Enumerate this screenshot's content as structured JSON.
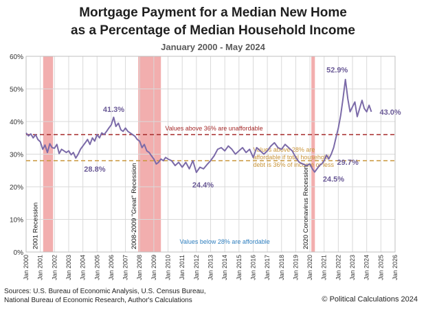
{
  "title_line1": "Mortgage Payment for a Median New Home",
  "title_line2": "as a Percentage of Median Household Income",
  "subtitle": "January 2000 - May 2024",
  "sources_line1": "Sources: U.S. Bureau of Economic Analysis, U.S. Census Bureau,",
  "sources_line2": "National Bureau of Economic Research, Author's Calculations",
  "credit": "© Political Calculations 2024",
  "colors": {
    "line": "#7b6aa8",
    "unaffordable": "#a52a2a",
    "threshold28": "#c9953a",
    "recession": "#f0a0a0",
    "below_note": "#2f7fbf",
    "grid": "#d9d9d9"
  },
  "chart_data": {
    "type": "line",
    "title": "Mortgage Payment for a Median New Home as a Percentage of Median Household Income",
    "xlim": [
      2000,
      2026
    ],
    "ylim": [
      0,
      60
    ],
    "grid": true,
    "y_ticks": [
      "0%",
      "10%",
      "20%",
      "30%",
      "40%",
      "50%",
      "60%"
    ],
    "x_ticks": [
      "Jan 2000",
      "Jan 2001",
      "Jan 2002",
      "Jan 2003",
      "Jan 2004",
      "Jan 2005",
      "Jan 2006",
      "Jan 2007",
      "Jan 2008",
      "Jan 2009",
      "Jan 2010",
      "Jan 2011",
      "Jan 2012",
      "Jan 2013",
      "Jan 2014",
      "Jan 2015",
      "Jan 2016",
      "Jan 2017",
      "Jan 2018",
      "Jan 2019",
      "Jan 2020",
      "Jan 2021",
      "Jan 2022",
      "Jan 2023",
      "Jan 2024",
      "Jan 2025",
      "Jan 2026"
    ],
    "series": [
      {
        "x": [
          2000.0,
          2000.17,
          2000.33,
          2000.5,
          2000.67,
          2000.83,
          2001.0,
          2001.17,
          2001.33,
          2001.5,
          2001.67,
          2001.83,
          2002.0,
          2002.17,
          2002.33,
          2002.5,
          2002.67,
          2002.83,
          2003.0,
          2003.17,
          2003.33,
          2003.5,
          2003.67,
          2003.83,
          2004.0,
          2004.17,
          2004.33,
          2004.5,
          2004.67,
          2004.83,
          2005.0,
          2005.17,
          2005.33,
          2005.5,
          2005.67,
          2005.83,
          2006.0,
          2006.17,
          2006.33,
          2006.5,
          2006.67,
          2006.83,
          2007.0,
          2007.17,
          2007.33,
          2007.5,
          2007.67,
          2007.83,
          2008.0,
          2008.17,
          2008.33,
          2008.5,
          2008.67,
          2008.83,
          2009.0,
          2009.17,
          2009.33,
          2009.5,
          2009.67,
          2009.83,
          2010.0,
          2010.25,
          2010.5,
          2010.75,
          2011.0,
          2011.25,
          2011.5,
          2011.75,
          2012.0,
          2012.25,
          2012.5,
          2012.75,
          2013.0,
          2013.25,
          2013.5,
          2013.75,
          2014.0,
          2014.25,
          2014.5,
          2014.75,
          2015.0,
          2015.25,
          2015.5,
          2015.75,
          2016.0,
          2016.25,
          2016.5,
          2016.75,
          2017.0,
          2017.25,
          2017.5,
          2017.75,
          2018.0,
          2018.25,
          2018.5,
          2018.75,
          2019.0,
          2019.25,
          2019.5,
          2019.75,
          2020.0,
          2020.17,
          2020.33,
          2020.5,
          2020.67,
          2020.83,
          2021.0,
          2021.17,
          2021.33,
          2021.5,
          2021.67,
          2021.83,
          2022.0,
          2022.17,
          2022.33,
          2022.5,
          2022.67,
          2022.83,
          2023.0,
          2023.17,
          2023.33,
          2023.5,
          2023.67,
          2023.83,
          2024.0,
          2024.17,
          2024.33
        ],
        "y": [
          36.5,
          35.6,
          36.2,
          35.0,
          36.0,
          34.5,
          33.8,
          31.5,
          32.8,
          30.5,
          33.2,
          32.0,
          31.8,
          33.0,
          30.2,
          31.5,
          31.0,
          30.5,
          31.0,
          29.8,
          30.5,
          28.8,
          30.0,
          31.5,
          32.5,
          33.5,
          34.5,
          33.0,
          35.0,
          34.0,
          36.0,
          35.0,
          36.5,
          36.0,
          37.0,
          38.0,
          39.0,
          41.3,
          38.5,
          39.5,
          37.5,
          37.0,
          38.0,
          37.0,
          36.5,
          36.0,
          35.5,
          34.5,
          34.0,
          32.0,
          33.0,
          31.0,
          30.5,
          29.5,
          28.5,
          27.0,
          27.5,
          28.5,
          28.0,
          29.0,
          28.5,
          28.0,
          26.5,
          27.5,
          26.0,
          27.5,
          25.5,
          28.0,
          24.4,
          26.0,
          25.5,
          26.8,
          28.0,
          29.5,
          31.5,
          32.0,
          31.0,
          32.5,
          31.5,
          30.0,
          31.0,
          32.0,
          30.5,
          31.5,
          29.0,
          32.0,
          31.0,
          30.0,
          31.0,
          32.5,
          33.5,
          32.0,
          31.5,
          33.0,
          32.0,
          31.0,
          29.0,
          27.5,
          27.0,
          26.5,
          27.0,
          25.5,
          24.5,
          25.5,
          26.5,
          27.0,
          28.0,
          29.7,
          28.5,
          30.0,
          32.0,
          35.0,
          38.0,
          42.0,
          47.0,
          52.9,
          47.0,
          43.0,
          44.5,
          46.0,
          41.5,
          44.0,
          46.5,
          44.0,
          43.0,
          45.0,
          43.0
        ]
      }
    ],
    "reference_lines": [
      {
        "y": 36,
        "label": "Values above 36% are unaffordable"
      },
      {
        "y": 28,
        "label_lines": [
          "Values above 28% are",
          "affordable if total household",
          "debt is 36% of income or less"
        ]
      }
    ],
    "recessions": [
      {
        "start": 2001.2,
        "end": 2001.9,
        "label": "2001 Recession"
      },
      {
        "start": 2007.9,
        "end": 2009.5,
        "label": "2008-2009 \"Great\" Recession"
      },
      {
        "start": 2020.1,
        "end": 2020.35,
        "label": "2020 Coronavirus Recession"
      }
    ],
    "annotations": [
      {
        "text": "41.3%",
        "x": 2006.17,
        "y": 41.3
      },
      {
        "text": "28.8%",
        "x": 2003.5,
        "y": 28.8
      },
      {
        "text": "24.4%",
        "x": 2012.0,
        "y": 24.4
      },
      {
        "text": "52.9%",
        "x": 2022.5,
        "y": 52.9
      },
      {
        "text": "43.0%",
        "x": 2024.33,
        "y": 43.0
      },
      {
        "text": "29.7%",
        "x": 2021.33,
        "y": 29.7
      },
      {
        "text": "24.5%",
        "x": 2020.33,
        "y": 24.5
      }
    ],
    "notes": [
      {
        "text": "Values below 28% are affordable"
      }
    ]
  }
}
